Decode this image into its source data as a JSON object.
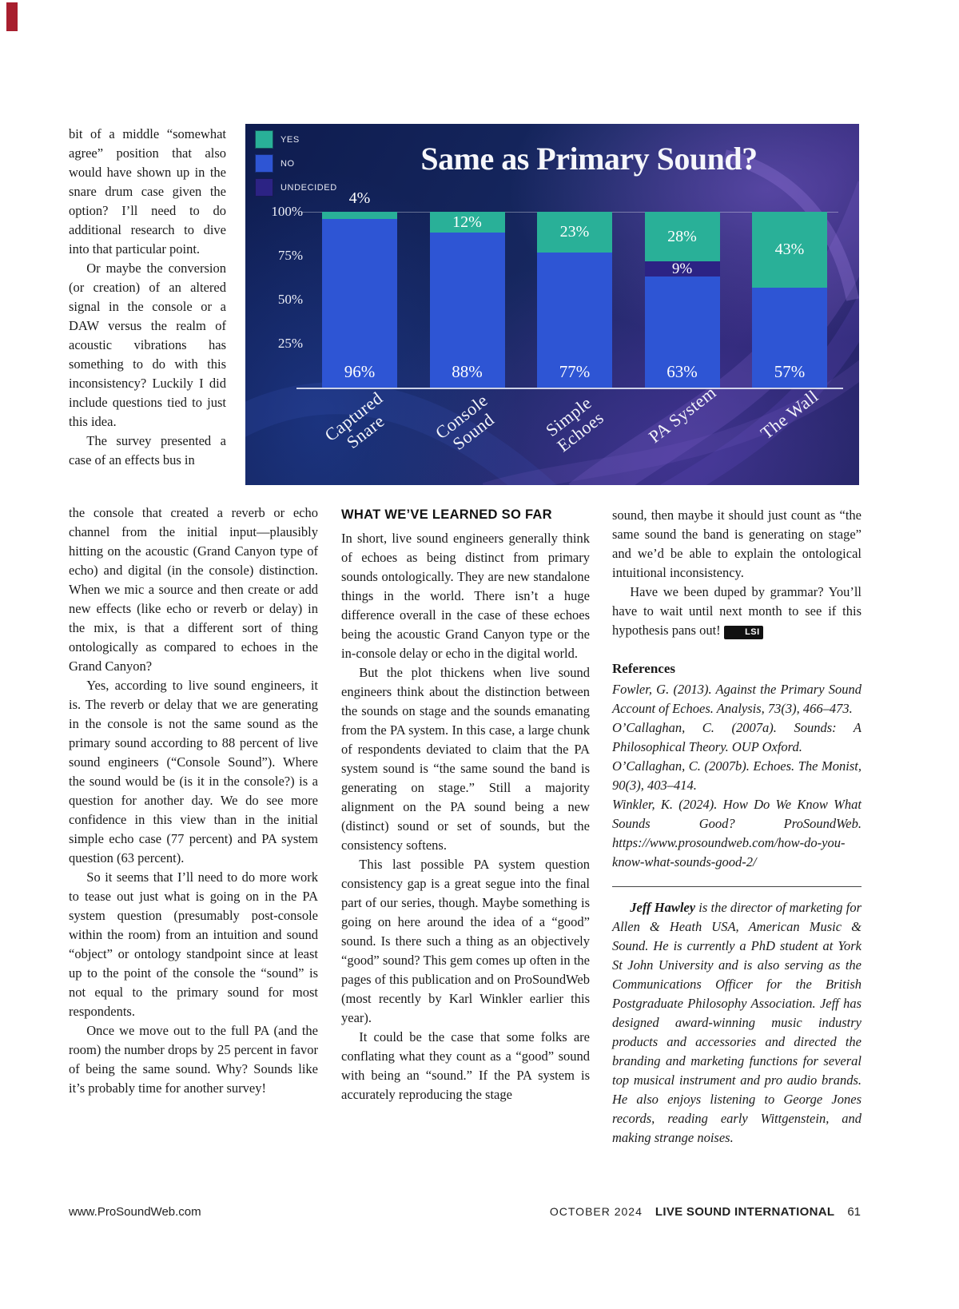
{
  "chart_data": {
    "type": "bar",
    "stacked": true,
    "title": "Same as Primary Sound?",
    "categories": [
      "Captured Snare",
      "Console Sound",
      "Simple Echoes",
      "PA System",
      "The Wall"
    ],
    "series": [
      {
        "name": "NO",
        "values": [
          96,
          88,
          77,
          63,
          57
        ]
      },
      {
        "name": "UNDECIDED",
        "values": [
          0,
          0,
          0,
          9,
          0
        ]
      },
      {
        "name": "YES",
        "values": [
          4,
          12,
          23,
          28,
          43
        ]
      }
    ],
    "legend": [
      "YES",
      "NO",
      "UNDECIDED"
    ],
    "colors": {
      "YES": "#29b098",
      "NO": "#2e55d4",
      "UNDECIDED": "#2c2384"
    },
    "y_ticks": [
      {
        "label": "100%",
        "value": 100
      },
      {
        "label": "75%",
        "value": 75
      },
      {
        "label": "50%",
        "value": 50
      },
      {
        "label": "25%",
        "value": 25
      }
    ],
    "ylim": [
      0,
      100
    ],
    "legend_position": "top-left"
  },
  "article": {
    "col1_narrow_paragraphs": [
      "bit of a middle “somewhat agree” position that also would have shown up in the snare drum case given the option? I’ll need to do additional research to dive into that particular point.",
      "Or maybe the conversion (or creation) of an altered signal in the console or a DAW versus the realm of acoustic vibrations has something to do with this inconsistency? Luckily I did include questions tied to just this idea.",
      "The survey presented a case of an effects bus in"
    ],
    "col1_wide_paragraphs": [
      "the console that created a reverb or echo channel from the initial input—plausibly hitting on the acoustic (Grand Canyon type of echo) and digital (in the console) distinction. When we mic a source and then create or add new effects (like echo or reverb or delay) in the mix, is that a different sort of thing ontologically as compared to echoes in the Grand Canyon?",
      "Yes, according to live sound engineers, it is. The reverb or delay that we are generating in the console is not the same sound as the primary sound according to 88 percent of live sound engineers (“Console Sound”). Where the sound would be (is it in the console?) is a question for another day. We do see more confidence in this view than in the initial simple echo case (77 percent) and PA system question (63 percent).",
      "So it seems that I’ll need to do more work to tease out just what is going on in the PA system question (presumably post-console within the room) from an intuition and sound “object” or ontology standpoint since at least up to the point of the console the “sound” is not equal to the primary sound for most respondents.",
      "Once we move out to the full PA (and the room) the number drops by 25 percent in favor of being the same sound. Why? Sounds like it’s probably time for another survey!"
    ],
    "col2_heading": "WHAT WE’VE LEARNED SO FAR",
    "col2_paragraphs": [
      "In short, live sound engineers generally think of echoes as being distinct from primary sounds ontologically. They are new standalone things in the world. There isn’t a huge difference overall in the case of these echoes being the acoustic Grand Canyon type or the in-console delay or echo in the digital world.",
      "But the plot thickens when live sound engineers think about the distinction between the sounds on stage and the sounds emanating from the PA system. In this case, a large chunk of respondents deviated to claim that the PA system sound is “the same sound the band is generating on stage.” Still a majority alignment on the PA sound being a new (distinct) sound or set of sounds, but the consistency softens.",
      "This last possible PA system question consistency gap is a great segue into the final part of our series, though. Maybe something is going on here around the idea of a “good” sound. Is there such a thing as an objectively “good” sound? This gem comes up often in the pages of this publication and on ProSoundWeb (most recently by Karl Winkler earlier this year).",
      "It could be the case that some folks are conflating what they count as a “good” sound with being an “sound.” If the PA system is accurately reproducing the stage"
    ],
    "col3_paragraphs": [
      "sound, then maybe it should just count as “the same sound the band is generating on stage” and we’d be able to explain the ontological intuitional inconsistency."
    ],
    "col3_closing": "Have we been duped by grammar? You’ll have to wait until next month to see if this hypothesis pans out!",
    "lsi_badge": "LSI",
    "references_heading": "References",
    "references": [
      "Fowler, G. (2013). Against the Primary Sound Account of Echoes. Analysis, 73(3), 466–473.",
      "O’Callaghan, C. (2007a). Sounds: A Philosophical Theory. OUP Oxford.",
      "O’Callaghan, C. (2007b). Echoes. The Monist, 90(3), 403–414.",
      "Winkler, K. (2024). How Do We Know What Sounds Good? ProSoundWeb. https://www.prosoundweb.com/how-do-you-know-what-sounds-good-2/"
    ],
    "author_name": "Jeff Hawley",
    "author_bio": " is the director of marketing for Allen & Heath USA, American Music & Sound. He is currently a PhD student at York St John University and is also serving as the Communications Officer for the British Postgraduate Philosophy Association. Jeff has designed award-winning music industry products and accessories and directed the branding and marketing functions for several top musical instrument and pro audio brands. He also enjoys listening to George Jones records, reading early Wittgenstein, and making strange noises."
  },
  "footer": {
    "website": "www.ProSoundWeb.com",
    "issue": "OCTOBER 2024",
    "magazine": "LIVE SOUND INTERNATIONAL",
    "page_number": "61"
  }
}
